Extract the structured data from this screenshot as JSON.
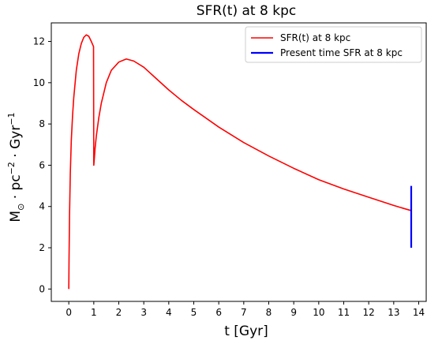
{
  "chart_data": {
    "type": "line",
    "title": "SFR(t) at 8 kpc",
    "xlabel": "t [Gyr]",
    "ylabel_parts": [
      "M",
      "⊙",
      " · pc",
      "−2",
      " · Gyr",
      "−1"
    ],
    "xlim": [
      -0.7,
      14.3
    ],
    "ylim": [
      -0.6,
      12.9
    ],
    "xticks": [
      0,
      1,
      2,
      3,
      4,
      5,
      6,
      7,
      8,
      9,
      10,
      11,
      12,
      13,
      14
    ],
    "yticks": [
      0,
      2,
      4,
      6,
      8,
      10,
      12
    ],
    "grid": false,
    "legend_position": "top-right",
    "series": [
      {
        "name": "SFR(t) at 8 kpc",
        "color": "#ff0000",
        "x": [
          0.0,
          0.01,
          0.03,
          0.06,
          0.1,
          0.15,
          0.2,
          0.3,
          0.4,
          0.5,
          0.6,
          0.7,
          0.8,
          0.9,
          0.99,
          1.0,
          1.02,
          1.05,
          1.1,
          1.2,
          1.3,
          1.5,
          1.7,
          2.0,
          2.3,
          2.6,
          3.0,
          3.5,
          4.0,
          4.5,
          5.0,
          6.0,
          7.0,
          8.0,
          9.0,
          10.0,
          11.0,
          12.0,
          13.0,
          13.7
        ],
        "y": [
          0.0,
          1.5,
          3.6,
          5.6,
          7.2,
          8.4,
          9.3,
          10.6,
          11.4,
          11.9,
          12.2,
          12.32,
          12.25,
          12.0,
          11.75,
          6.0,
          6.3,
          6.8,
          7.4,
          8.3,
          9.0,
          10.0,
          10.6,
          11.0,
          11.15,
          11.05,
          10.75,
          10.2,
          9.65,
          9.15,
          8.7,
          7.85,
          7.1,
          6.45,
          5.85,
          5.3,
          4.85,
          4.45,
          4.05,
          3.8
        ]
      },
      {
        "name": "Present time SFR at 8 kpc",
        "color": "#0000ff",
        "x": [
          13.7,
          13.7
        ],
        "y": [
          2.0,
          5.0
        ]
      }
    ]
  }
}
